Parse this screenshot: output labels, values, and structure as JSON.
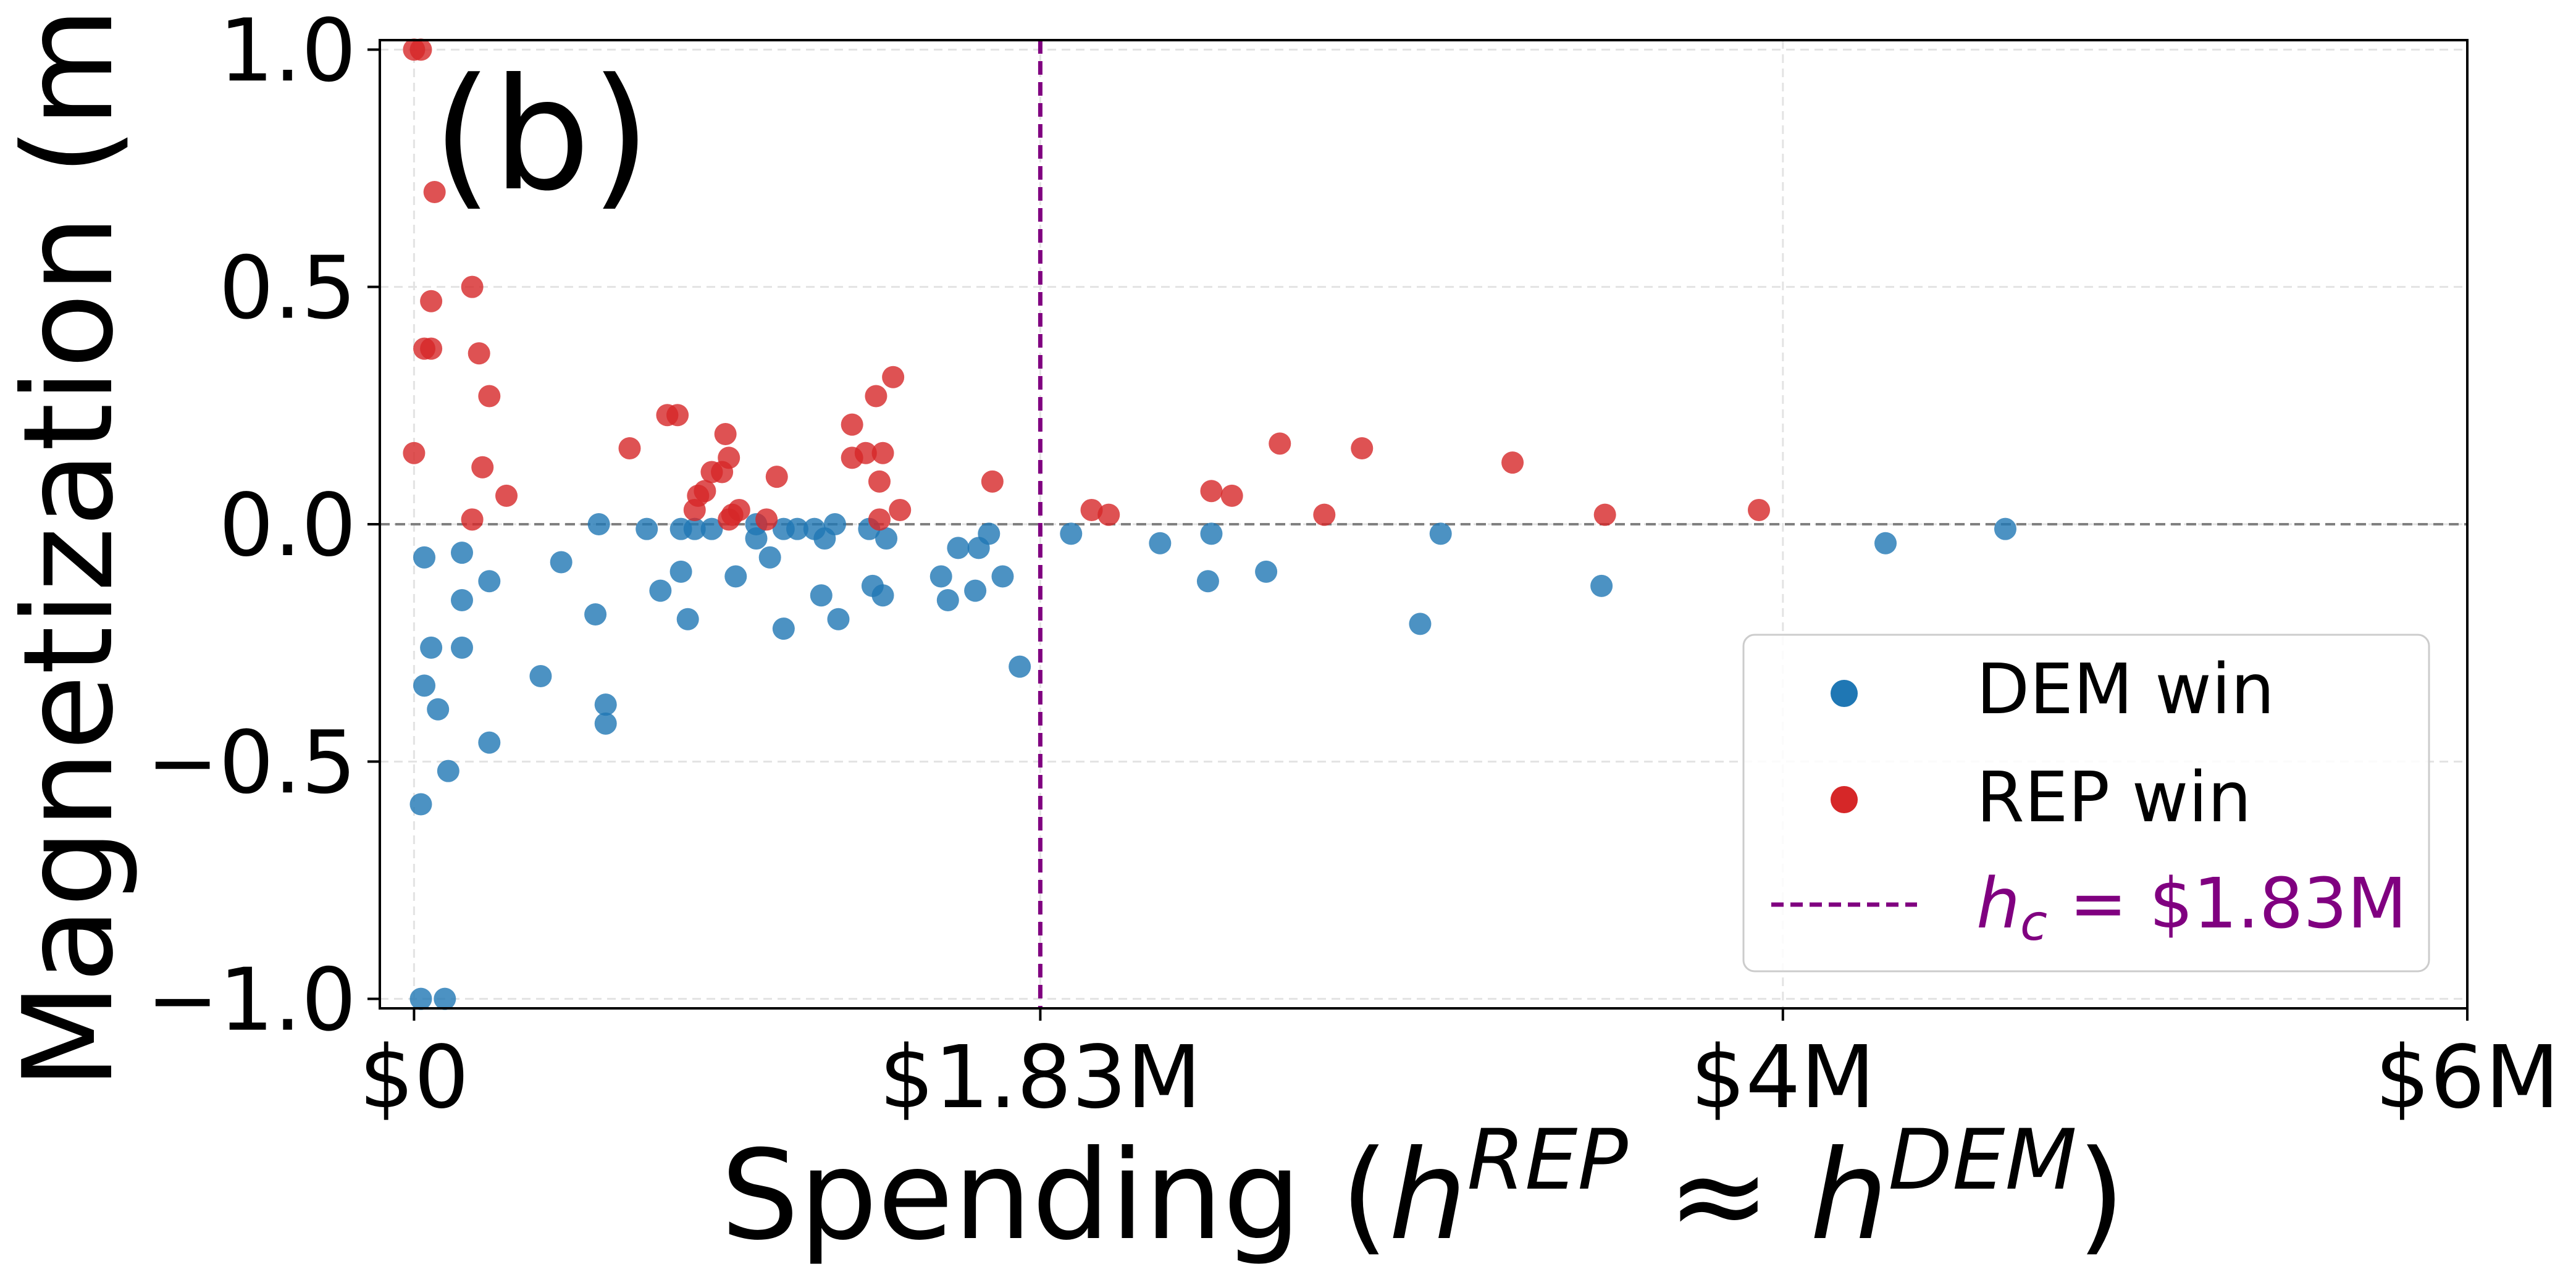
{
  "chart_data": {
    "type": "scatter",
    "panel_label": "(b)",
    "xlabel": {
      "base": "Spending (",
      "h1": "h",
      "sup1": "REP",
      "approx": " ≈ ",
      "h2": "h",
      "sup2": "DEM",
      "close": ")"
    },
    "ylabel": "Magnetization (m)",
    "xlim": [
      -0.1,
      6.0
    ],
    "ylim": [
      -1.02,
      1.02
    ],
    "xticks": [
      {
        "value": 0,
        "label": "$0"
      },
      {
        "value": 1.83,
        "label": "$1.83M"
      },
      {
        "value": 4.0,
        "label": "$4M"
      },
      {
        "value": 6.0,
        "label": "$6M"
      }
    ],
    "yticks": [
      {
        "value": 1.0,
        "label": "1.0"
      },
      {
        "value": 0.5,
        "label": "0.5"
      },
      {
        "value": 0.0,
        "label": "0.0"
      },
      {
        "value": -0.5,
        "label": "−0.5"
      },
      {
        "value": -1.0,
        "label": "−1.0"
      }
    ],
    "grid": true,
    "hline": {
      "y": 0.0
    },
    "vline": {
      "x": 1.83,
      "legend": {
        "h": "h",
        "sub": "c",
        "eq": " = $1.83M"
      }
    },
    "legend_position": "lower-right",
    "series": [
      {
        "name": "DEM win",
        "color": "#1f77b4",
        "points": [
          [
            0.02,
            -1.0
          ],
          [
            0.09,
            -1.0
          ],
          [
            0.02,
            -0.59
          ],
          [
            0.1,
            -0.52
          ],
          [
            0.07,
            -0.39
          ],
          [
            0.03,
            -0.34
          ],
          [
            0.05,
            -0.26
          ],
          [
            0.03,
            -0.07
          ],
          [
            0.14,
            -0.26
          ],
          [
            0.14,
            -0.16
          ],
          [
            0.14,
            -0.06
          ],
          [
            0.22,
            -0.46
          ],
          [
            0.22,
            -0.12
          ],
          [
            0.37,
            -0.32
          ],
          [
            0.43,
            -0.08
          ],
          [
            0.53,
            -0.19
          ],
          [
            0.56,
            -0.38
          ],
          [
            0.56,
            -0.42
          ],
          [
            0.54,
            0.0
          ],
          [
            0.68,
            -0.01
          ],
          [
            0.72,
            -0.14
          ],
          [
            0.78,
            -0.1
          ],
          [
            0.8,
            -0.2
          ],
          [
            0.78,
            -0.01
          ],
          [
            0.82,
            -0.01
          ],
          [
            0.87,
            -0.01
          ],
          [
            0.94,
            -0.11
          ],
          [
            1.0,
            -0.03
          ],
          [
            1.0,
            0.0
          ],
          [
            1.04,
            -0.07
          ],
          [
            1.08,
            -0.22
          ],
          [
            1.08,
            -0.01
          ],
          [
            1.12,
            -0.01
          ],
          [
            1.17,
            -0.01
          ],
          [
            1.19,
            -0.15
          ],
          [
            1.2,
            -0.03
          ],
          [
            1.23,
            0.0
          ],
          [
            1.24,
            -0.2
          ],
          [
            1.33,
            -0.01
          ],
          [
            1.34,
            -0.13
          ],
          [
            1.37,
            -0.15
          ],
          [
            1.38,
            -0.03
          ],
          [
            1.54,
            -0.11
          ],
          [
            1.56,
            -0.16
          ],
          [
            1.59,
            -0.05
          ],
          [
            1.64,
            -0.14
          ],
          [
            1.65,
            -0.05
          ],
          [
            1.68,
            -0.02
          ],
          [
            1.72,
            -0.11
          ],
          [
            1.77,
            -0.3
          ],
          [
            1.92,
            -0.02
          ],
          [
            2.18,
            -0.04
          ],
          [
            2.32,
            -0.12
          ],
          [
            2.33,
            -0.02
          ],
          [
            2.49,
            -0.1
          ],
          [
            2.94,
            -0.21
          ],
          [
            3.0,
            -0.02
          ],
          [
            3.47,
            -0.13
          ],
          [
            4.3,
            -0.04
          ],
          [
            4.65,
            -0.01
          ]
        ]
      },
      {
        "name": "REP win",
        "color": "#d62728",
        "points": [
          [
            0.0,
            1.0
          ],
          [
            0.02,
            1.0
          ],
          [
            0.0,
            0.15
          ],
          [
            0.03,
            0.37
          ],
          [
            0.05,
            0.37
          ],
          [
            0.05,
            0.47
          ],
          [
            0.06,
            0.7
          ],
          [
            0.17,
            0.5
          ],
          [
            0.17,
            0.01
          ],
          [
            0.19,
            0.36
          ],
          [
            0.2,
            0.12
          ],
          [
            0.22,
            0.27
          ],
          [
            0.27,
            0.06
          ],
          [
            0.63,
            0.16
          ],
          [
            0.74,
            0.23
          ],
          [
            0.77,
            0.23
          ],
          [
            0.82,
            0.03
          ],
          [
            0.83,
            0.06
          ],
          [
            0.85,
            0.07
          ],
          [
            0.87,
            0.11
          ],
          [
            0.9,
            0.11
          ],
          [
            0.91,
            0.19
          ],
          [
            0.92,
            0.14
          ],
          [
            0.92,
            0.01
          ],
          [
            0.93,
            0.02
          ],
          [
            0.95,
            0.03
          ],
          [
            1.03,
            0.01
          ],
          [
            1.06,
            0.1
          ],
          [
            1.28,
            0.14
          ],
          [
            1.28,
            0.21
          ],
          [
            1.32,
            0.15
          ],
          [
            1.35,
            0.27
          ],
          [
            1.36,
            0.09
          ],
          [
            1.37,
            0.15
          ],
          [
            1.36,
            0.01
          ],
          [
            1.4,
            0.31
          ],
          [
            1.42,
            0.03
          ],
          [
            1.69,
            0.09
          ],
          [
            1.98,
            0.03
          ],
          [
            2.03,
            0.02
          ],
          [
            2.33,
            0.07
          ],
          [
            2.39,
            0.06
          ],
          [
            2.53,
            0.17
          ],
          [
            2.66,
            0.02
          ],
          [
            2.77,
            0.16
          ],
          [
            3.21,
            0.13
          ],
          [
            3.48,
            0.02
          ],
          [
            3.93,
            0.03
          ]
        ]
      }
    ]
  }
}
